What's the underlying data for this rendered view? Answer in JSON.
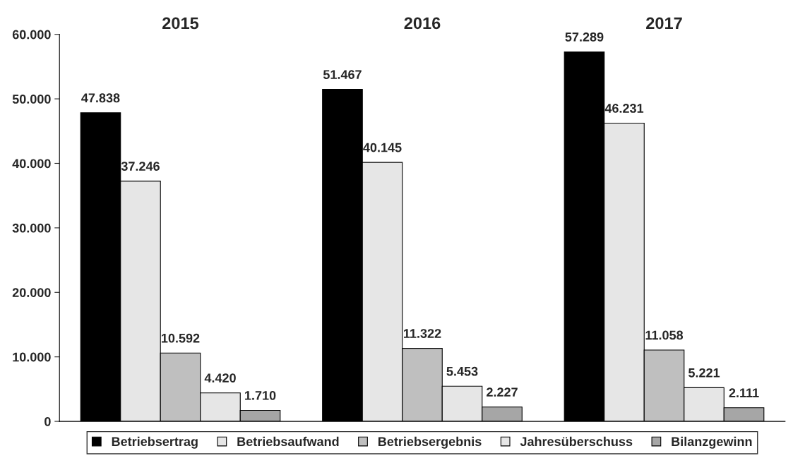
{
  "chart_data": {
    "type": "bar",
    "categories": [
      "2015",
      "2016",
      "2017"
    ],
    "series": [
      {
        "name": "Betriebsertrag",
        "color": "#000000",
        "values": [
          47838,
          51467,
          57289
        ],
        "value_labels": [
          "47.838",
          "51.467",
          "57.289"
        ]
      },
      {
        "name": "Betriebsaufwand",
        "color": "#e6e6e6",
        "values": [
          37246,
          40145,
          46231
        ],
        "value_labels": [
          "37.246",
          "40.145",
          "46.231"
        ]
      },
      {
        "name": "Betriebsergebnis",
        "color": "#bfbfbf",
        "values": [
          10592,
          11322,
          11058
        ],
        "value_labels": [
          "10.592",
          "11.322",
          "11.058"
        ]
      },
      {
        "name": "Jahresüberschuss",
        "color": "#e6e6e6",
        "values": [
          4420,
          5453,
          5221
        ],
        "value_labels": [
          "4.420",
          "5.453",
          "5.221"
        ]
      },
      {
        "name": "Bilanzgewinn",
        "color": "#a6a6a6",
        "values": [
          1710,
          2227,
          2111
        ],
        "value_labels": [
          "1.710",
          "2.227",
          "2.111"
        ]
      }
    ],
    "ylim": [
      0,
      60000
    ],
    "yticks": [
      0,
      {
        "value": 10000,
        "label": "10.000"
      },
      {
        "value": 20000,
        "label": "20.000"
      },
      {
        "value": 30000,
        "label": "30.000"
      },
      {
        "value": 40000,
        "label": "40.000"
      },
      {
        "value": 50000,
        "label": "50.000"
      },
      {
        "value": 60000,
        "label": "60.000"
      }
    ],
    "grid": false,
    "legend": "bottom"
  }
}
